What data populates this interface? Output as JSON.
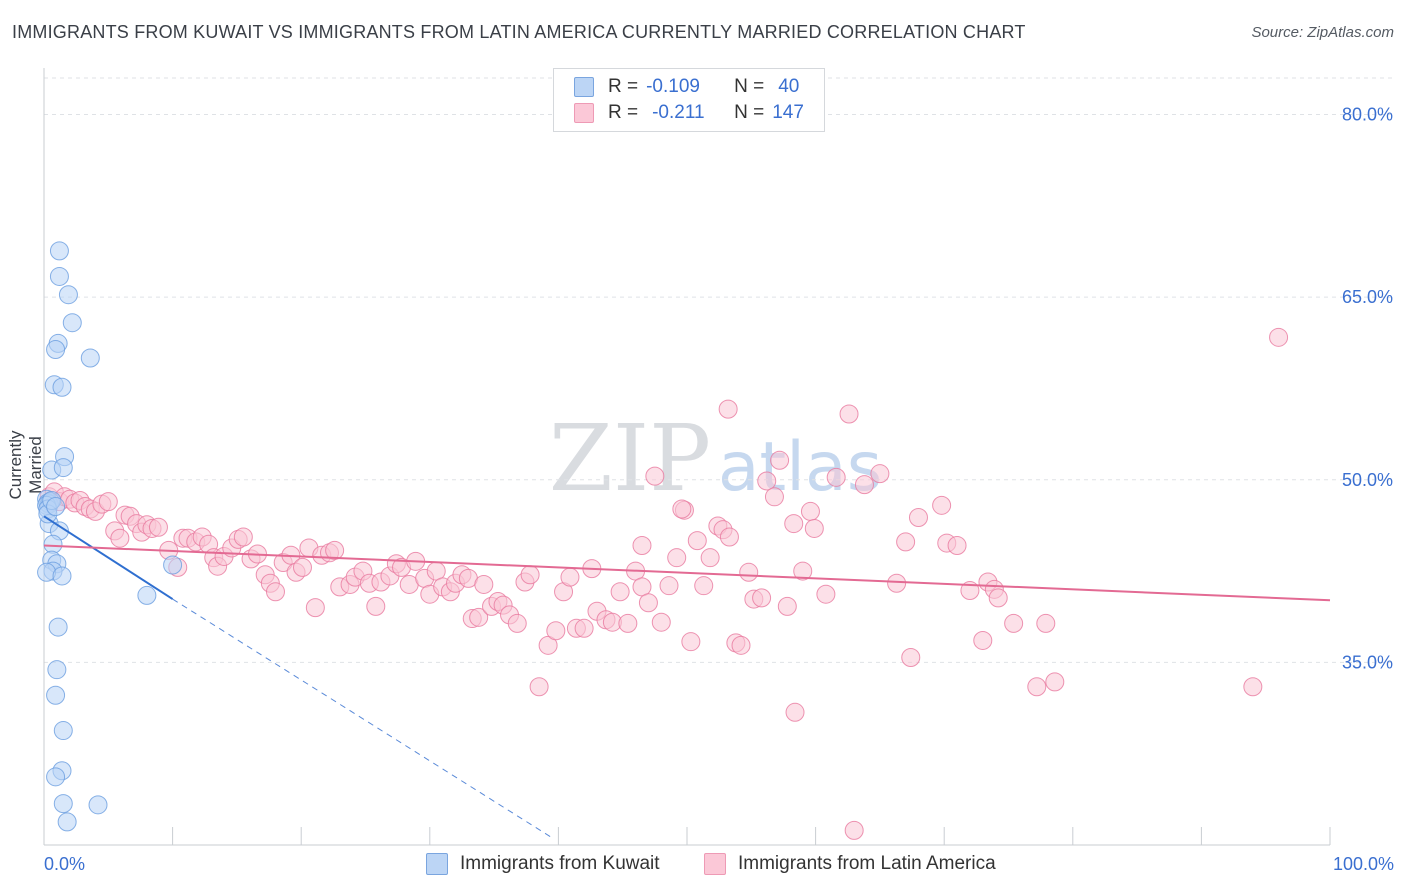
{
  "title": "IMMIGRANTS FROM KUWAIT VS IMMIGRANTS FROM LATIN AMERICA CURRENTLY MARRIED CORRELATION CHART",
  "source": "Source: ZipAtlas.com",
  "watermark": {
    "zip": "ZIP",
    "atlas": "atlas"
  },
  "stats": [
    {
      "r_label": "R =",
      "r_value": "-0.109",
      "n_label": "N =",
      "n_value": "40",
      "color": "#a8c8f0"
    },
    {
      "r_label": "R =",
      "r_value": "-0.211",
      "n_label": "N =",
      "n_value": "147",
      "color": "#f7b8cb"
    }
  ],
  "legend": [
    {
      "label": "Immigrants from Kuwait",
      "color": "#a8c8f0"
    },
    {
      "label": "Immigrants from Latin America",
      "color": "#f7b8cb"
    }
  ],
  "chart_data": {
    "type": "scatter",
    "title": "IMMIGRANTS FROM KUWAIT VS IMMIGRANTS FROM LATIN AMERICA CURRENTLY MARRIED CORRELATION CHART",
    "xlabel": "",
    "ylabel": "Currently Married",
    "xlim": [
      0,
      100
    ],
    "ylim": [
      20,
      83
    ],
    "x_tick_labels": [
      "0.0%",
      "100.0%"
    ],
    "y_ticks": [
      35,
      50,
      65,
      80
    ],
    "y_tick_labels": [
      "35.0%",
      "50.0%",
      "65.0%",
      "80.0%"
    ],
    "series": [
      {
        "name": "Immigrants from Kuwait",
        "color": "#6a9ee0",
        "fill": "#b8d4f5",
        "trend": {
          "x": [
            0,
            10
          ],
          "y": [
            47.0,
            40.2
          ],
          "dashed_extension_to": [
            39.5,
            20.6
          ]
        },
        "points": [
          [
            1.2,
            68.8
          ],
          [
            1.2,
            66.7
          ],
          [
            1.9,
            65.2
          ],
          [
            2.2,
            62.9
          ],
          [
            1.1,
            61.2
          ],
          [
            0.9,
            60.7
          ],
          [
            3.6,
            60.0
          ],
          [
            0.8,
            57.8
          ],
          [
            1.4,
            57.6
          ],
          [
            1.6,
            51.9
          ],
          [
            0.6,
            50.8
          ],
          [
            1.5,
            51.0
          ],
          [
            0.2,
            48.4
          ],
          [
            0.3,
            48.1
          ],
          [
            0.4,
            48.0
          ],
          [
            0.5,
            48.2
          ],
          [
            0.2,
            47.9
          ],
          [
            0.3,
            47.6
          ],
          [
            0.4,
            46.4
          ],
          [
            1.2,
            45.8
          ],
          [
            0.7,
            44.7
          ],
          [
            0.6,
            43.4
          ],
          [
            1.0,
            43.1
          ],
          [
            0.7,
            42.5
          ],
          [
            0.2,
            42.4
          ],
          [
            1.4,
            42.1
          ],
          [
            10.0,
            43.0
          ],
          [
            8.0,
            40.5
          ],
          [
            1.1,
            37.9
          ],
          [
            1.0,
            34.4
          ],
          [
            0.9,
            32.3
          ],
          [
            1.5,
            29.4
          ],
          [
            1.4,
            26.1
          ],
          [
            0.9,
            25.6
          ],
          [
            1.5,
            23.4
          ],
          [
            4.2,
            23.3
          ],
          [
            1.8,
            21.9
          ],
          [
            0.3,
            47.2
          ],
          [
            0.6,
            48.3
          ],
          [
            0.9,
            47.8
          ]
        ]
      },
      {
        "name": "Immigrants from Latin America",
        "color": "#e8799f",
        "fill": "#f9c6d5",
        "trend": {
          "x": [
            0,
            100
          ],
          "y": [
            44.6,
            40.1
          ]
        },
        "points": [
          [
            0.4,
            48.6
          ],
          [
            0.8,
            49.0
          ],
          [
            1.2,
            48.2
          ],
          [
            1.6,
            48.6
          ],
          [
            2.0,
            48.4
          ],
          [
            2.4,
            48.1
          ],
          [
            2.8,
            48.3
          ],
          [
            3.2,
            47.8
          ],
          [
            3.6,
            47.6
          ],
          [
            4.0,
            47.4
          ],
          [
            4.5,
            48.0
          ],
          [
            5.0,
            48.2
          ],
          [
            5.5,
            45.8
          ],
          [
            5.9,
            45.2
          ],
          [
            6.3,
            47.1
          ],
          [
            6.7,
            47.0
          ],
          [
            7.2,
            46.4
          ],
          [
            7.6,
            45.7
          ],
          [
            8.0,
            46.3
          ],
          [
            8.4,
            46.0
          ],
          [
            8.9,
            46.1
          ],
          [
            9.7,
            44.2
          ],
          [
            10.4,
            42.8
          ],
          [
            10.8,
            45.2
          ],
          [
            11.2,
            45.2
          ],
          [
            11.8,
            44.9
          ],
          [
            12.3,
            45.3
          ],
          [
            12.8,
            44.7
          ],
          [
            13.2,
            43.6
          ],
          [
            13.5,
            42.9
          ],
          [
            14.0,
            43.7
          ],
          [
            14.6,
            44.4
          ],
          [
            15.1,
            45.1
          ],
          [
            15.5,
            45.3
          ],
          [
            16.1,
            43.5
          ],
          [
            16.6,
            43.9
          ],
          [
            17.2,
            42.2
          ],
          [
            17.6,
            41.5
          ],
          [
            18.0,
            40.8
          ],
          [
            18.6,
            43.2
          ],
          [
            19.2,
            43.8
          ],
          [
            19.6,
            42.4
          ],
          [
            20.1,
            42.8
          ],
          [
            20.6,
            44.4
          ],
          [
            21.1,
            39.5
          ],
          [
            21.6,
            43.8
          ],
          [
            22.2,
            44.0
          ],
          [
            22.6,
            44.2
          ],
          [
            23.0,
            41.2
          ],
          [
            23.8,
            41.4
          ],
          [
            24.2,
            42.0
          ],
          [
            24.8,
            42.5
          ],
          [
            25.3,
            41.5
          ],
          [
            25.8,
            39.6
          ],
          [
            26.2,
            41.6
          ],
          [
            26.9,
            42.1
          ],
          [
            27.4,
            43.1
          ],
          [
            27.8,
            42.8
          ],
          [
            28.4,
            41.4
          ],
          [
            28.9,
            43.3
          ],
          [
            29.6,
            41.9
          ],
          [
            30.0,
            40.6
          ],
          [
            30.5,
            42.5
          ],
          [
            31.0,
            41.2
          ],
          [
            31.6,
            40.8
          ],
          [
            32.0,
            41.5
          ],
          [
            32.5,
            42.2
          ],
          [
            33.0,
            41.9
          ],
          [
            33.3,
            38.6
          ],
          [
            33.8,
            38.7
          ],
          [
            34.2,
            41.4
          ],
          [
            34.8,
            39.6
          ],
          [
            35.3,
            40.0
          ],
          [
            35.7,
            39.7
          ],
          [
            36.2,
            38.9
          ],
          [
            36.8,
            38.2
          ],
          [
            37.4,
            41.6
          ],
          [
            37.8,
            42.2
          ],
          [
            38.5,
            33.0
          ],
          [
            39.2,
            36.4
          ],
          [
            39.8,
            37.6
          ],
          [
            40.4,
            40.8
          ],
          [
            40.9,
            42.0
          ],
          [
            41.4,
            37.8
          ],
          [
            42.0,
            37.8
          ],
          [
            42.6,
            42.7
          ],
          [
            43.0,
            39.2
          ],
          [
            43.7,
            38.5
          ],
          [
            44.2,
            38.3
          ],
          [
            44.8,
            40.8
          ],
          [
            45.4,
            38.2
          ],
          [
            46.0,
            42.5
          ],
          [
            46.5,
            41.2
          ],
          [
            47.0,
            39.9
          ],
          [
            47.5,
            50.3
          ],
          [
            48.0,
            38.3
          ],
          [
            48.6,
            41.3
          ],
          [
            49.2,
            43.6
          ],
          [
            49.8,
            47.5
          ],
          [
            50.3,
            36.7
          ],
          [
            50.8,
            45.0
          ],
          [
            51.3,
            41.3
          ],
          [
            51.8,
            43.6
          ],
          [
            52.4,
            46.2
          ],
          [
            52.8,
            45.9
          ],
          [
            53.3,
            45.3
          ],
          [
            53.8,
            36.6
          ],
          [
            54.2,
            36.4
          ],
          [
            54.8,
            42.4
          ],
          [
            55.2,
            40.2
          ],
          [
            55.8,
            40.3
          ],
          [
            53.2,
            55.8
          ],
          [
            56.2,
            49.9
          ],
          [
            56.8,
            48.6
          ],
          [
            57.2,
            51.6
          ],
          [
            57.8,
            39.6
          ],
          [
            58.3,
            46.4
          ],
          [
            59.0,
            42.5
          ],
          [
            59.6,
            47.4
          ],
          [
            59.9,
            46.0
          ],
          [
            60.8,
            40.6
          ],
          [
            61.6,
            50.2
          ],
          [
            62.6,
            55.4
          ],
          [
            63.8,
            49.6
          ],
          [
            65.0,
            50.5
          ],
          [
            66.3,
            41.5
          ],
          [
            67.0,
            44.9
          ],
          [
            67.4,
            35.4
          ],
          [
            68.0,
            46.9
          ],
          [
            69.8,
            47.9
          ],
          [
            70.2,
            44.8
          ],
          [
            71.0,
            44.6
          ],
          [
            72.0,
            40.9
          ],
          [
            73.0,
            36.8
          ],
          [
            73.4,
            41.6
          ],
          [
            73.9,
            41.0
          ],
          [
            74.2,
            40.3
          ],
          [
            75.4,
            38.2
          ],
          [
            77.2,
            33.0
          ],
          [
            77.9,
            38.2
          ],
          [
            78.6,
            33.4
          ],
          [
            96.0,
            61.7
          ],
          [
            94.0,
            33.0
          ],
          [
            63.0,
            21.2
          ],
          [
            58.4,
            30.9
          ],
          [
            49.6,
            47.6
          ],
          [
            46.5,
            44.6
          ]
        ]
      }
    ]
  }
}
